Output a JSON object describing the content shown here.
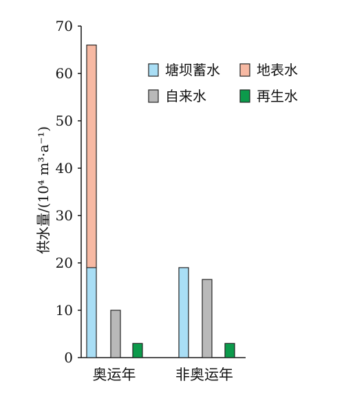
{
  "chart_data": {
    "type": "bar",
    "stacked_in_first_group": true,
    "ylabel": "供水量/(10⁴ m³·a⁻¹)",
    "ylim": [
      0,
      70
    ],
    "yticks": [
      "0",
      "10",
      "20",
      "30",
      "40",
      "50",
      "60",
      "70"
    ],
    "categories": [
      "奥运年",
      "非奥运年"
    ],
    "series": [
      {
        "name": "塘坝蓄水",
        "color": "#a9def5",
        "values": [
          19,
          19
        ]
      },
      {
        "name": "地表水",
        "color": "#f7b9a3",
        "values": [
          47,
          0
        ]
      },
      {
        "name": "自来水",
        "color": "#b9b9b9",
        "values": [
          10,
          16.5
        ]
      },
      {
        "name": "再生水",
        "color": "#0c9a4b",
        "values": [
          3,
          3
        ]
      }
    ],
    "legend": {
      "position": "top-right"
    },
    "grid": false
  }
}
